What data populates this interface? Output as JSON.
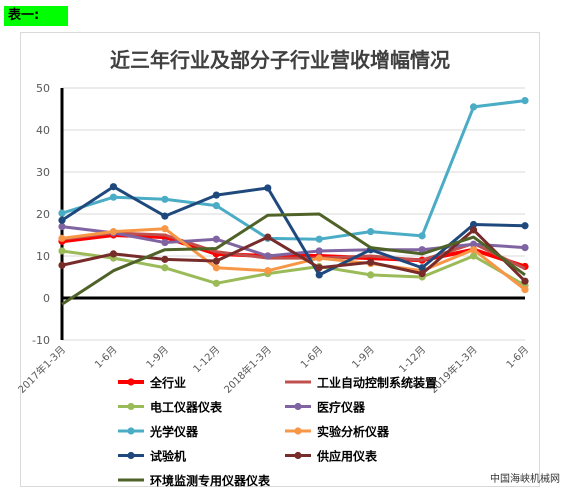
{
  "page": {
    "tag_label": "表一:",
    "watermark": "中国海峡机械网"
  },
  "chart_data": {
    "type": "line",
    "title": "近三年行业及部分子行业营收增幅情况",
    "xlabel": "",
    "ylabel": "",
    "ylim": [
      -10,
      50
    ],
    "yticks": [
      -10,
      0,
      10,
      20,
      30,
      40,
      50
    ],
    "categories": [
      "2017年1-3月",
      "1-6月",
      "1-9月",
      "1-12月",
      "2018年1-3月",
      "1-6月",
      "1-9月",
      "1-12月",
      "2019年1-3月",
      "1-6月"
    ],
    "grid": true,
    "legend": "bottom",
    "series": [
      {
        "name": "全行业",
        "color": "#ff0000",
        "values": [
          13.5,
          15,
          14.5,
          10.5,
          10,
          10,
          9.5,
          9,
          11.5,
          7.5
        ]
      },
      {
        "name": "工业自动控制系统装置",
        "color": "#c0504d",
        "values": [
          14,
          15.5,
          15,
          11,
          9.5,
          9.5,
          10,
          9,
          13,
          7
        ]
      },
      {
        "name": "电工仪器仪表",
        "color": "#9bbb59",
        "values": [
          11.2,
          9.5,
          7.2,
          3.5,
          5.8,
          7.5,
          5.5,
          5,
          10,
          3
        ]
      },
      {
        "name": "医疗仪器",
        "color": "#8064a2",
        "values": [
          17,
          15.5,
          13.2,
          14,
          10,
          11.2,
          11.5,
          11.5,
          12.8,
          12
        ]
      },
      {
        "name": "光学仪器",
        "color": "#4bacc6",
        "values": [
          20.2,
          24,
          23.5,
          22,
          14.2,
          14,
          15.8,
          14.8,
          45.5,
          47
        ]
      },
      {
        "name": "实验分析仪器",
        "color": "#f79646",
        "values": [
          14.2,
          15.8,
          16.5,
          7.2,
          6.5,
          9.5,
          8.2,
          6.5,
          11.5,
          2
        ]
      },
      {
        "name": "试验机",
        "color": "#1f497d",
        "values": [
          18.5,
          26.5,
          19.5,
          24.5,
          26.2,
          5.5,
          11.5,
          7.2,
          17.5,
          17.2
        ]
      },
      {
        "name": "供应用仪表",
        "color": "#772c2a",
        "values": [
          7.8,
          10.5,
          9.2,
          8.8,
          14.5,
          7.2,
          8.5,
          5.8,
          16.2,
          4
        ]
      },
      {
        "name": "环境监测专用仪器仪表",
        "color": "#4f6228",
        "values": [
          -1.5,
          6.5,
          11.5,
          11.8,
          19.7,
          20,
          12,
          10.5,
          14.5,
          5.5
        ]
      }
    ]
  }
}
